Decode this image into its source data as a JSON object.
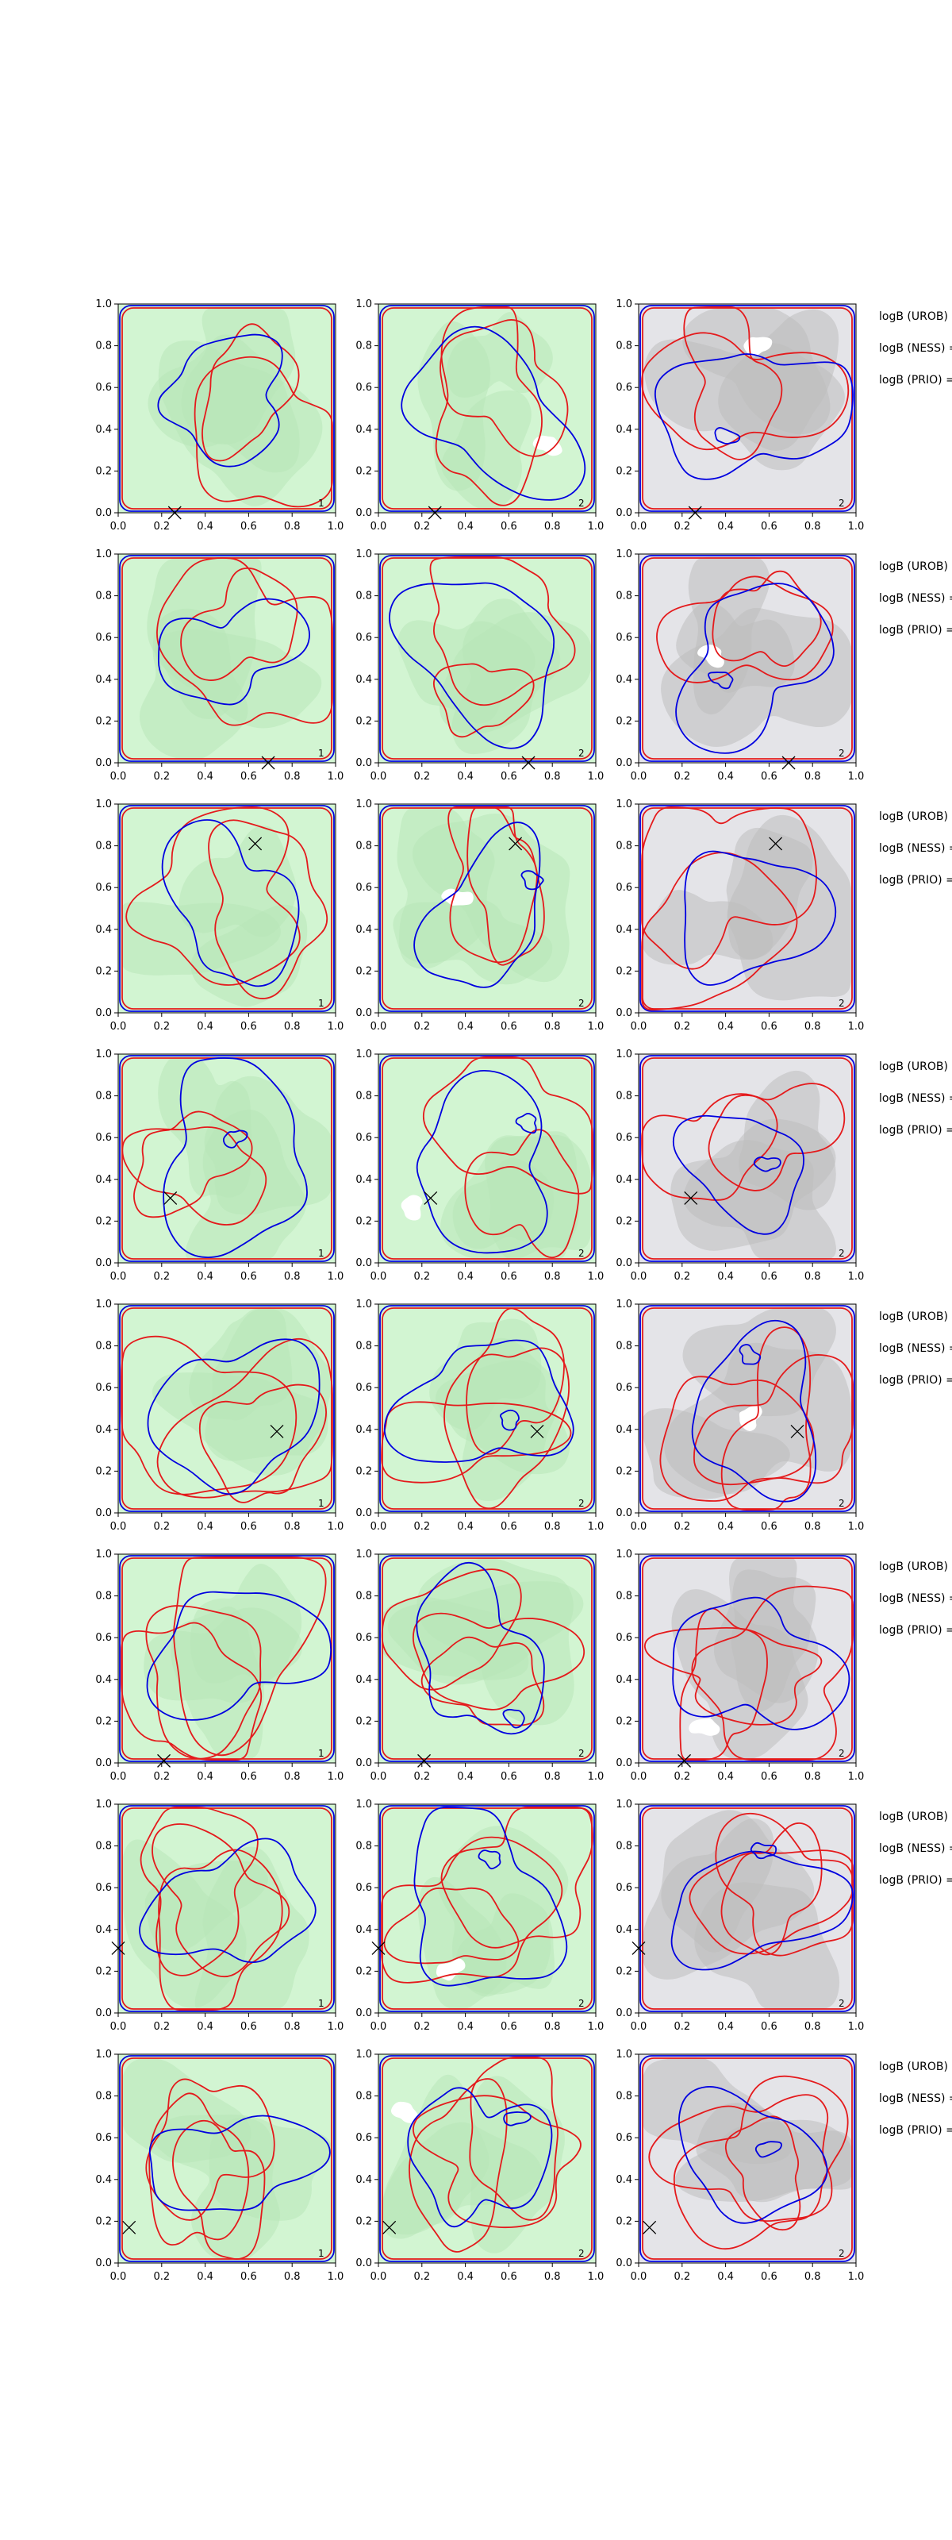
{
  "figure": {
    "legend_labels": [
      "logB (UROB) =",
      "logB (NESS) =",
      "logB (PRIO) ="
    ],
    "column_labels": [
      "1",
      "2",
      "2"
    ],
    "column_backgrounds": [
      "#d2f5d2",
      "#d2f5d2",
      "#e4e4e8"
    ],
    "colors": {
      "red_contour": "#e41a1c",
      "blue_contour": "#0000e0",
      "grey_fill": "#bdbdbd",
      "green_fill": "#b8e6b8",
      "white_patch": "#ffffff",
      "marker": "#000000"
    }
  },
  "chart_data": {
    "type": "contour",
    "grid": "8 rows x 3 columns of small-multiple contour panels",
    "xlim": [
      0,
      1
    ],
    "ylim": [
      0,
      1
    ],
    "x_ticks": [
      "0.0",
      "0.2",
      "0.4",
      "0.6",
      "0.8",
      "1.0"
    ],
    "y_ticks": [
      "0.0",
      "0.2",
      "0.4",
      "0.6",
      "0.8",
      "1.0"
    ],
    "markers": [
      {
        "row": 1,
        "x": 0.26,
        "y": 0.0
      },
      {
        "row": 2,
        "x": 0.69,
        "y": 0.0
      },
      {
        "row": 3,
        "x": 0.63,
        "y": 0.81
      },
      {
        "row": 4,
        "x": 0.24,
        "y": 0.31
      },
      {
        "row": 5,
        "x": 0.73,
        "y": 0.39
      },
      {
        "row": 6,
        "x": 0.21,
        "y": 0.01
      },
      {
        "row": 7,
        "x": 0.0,
        "y": 0.31
      },
      {
        "row": 8,
        "x": 0.05,
        "y": 0.17
      }
    ]
  }
}
